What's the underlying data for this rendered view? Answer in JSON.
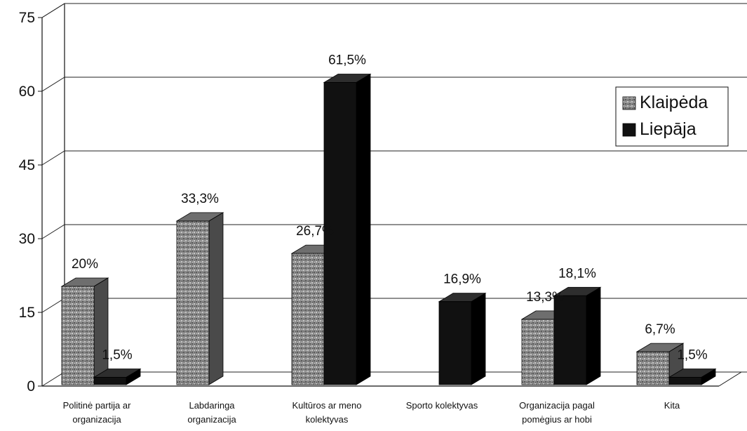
{
  "chart_data": {
    "type": "bar",
    "categories": [
      [
        "Politinė partija ar",
        "organizacija"
      ],
      [
        "Labdaringa",
        "organizacija"
      ],
      [
        "Kultūros ar meno",
        "kolektyvas"
      ],
      [
        "Sporto kolektyvas"
      ],
      [
        "Organizacija pagal",
        "pomėgius ar hobi"
      ],
      [
        "Kita"
      ]
    ],
    "series": [
      {
        "name": "Klaipėda",
        "color": "#8c8c8c",
        "values": [
          20,
          33.3,
          26.7,
          0,
          13.3,
          6.7
        ],
        "labels": [
          "20%",
          "33,3%",
          "26,7%",
          "",
          "13,3%",
          "6,7%"
        ]
      },
      {
        "name": "Liepāja",
        "color": "#111111",
        "values": [
          1.5,
          0,
          61.5,
          16.9,
          18.1,
          1.5
        ],
        "labels": [
          "1,5%",
          "",
          "61,5%",
          "16,9%",
          "18,1%",
          "1,5%"
        ]
      }
    ],
    "yticks": [
      "0",
      "15",
      "30",
      "45",
      "60",
      "75"
    ],
    "ylim": [
      0,
      75
    ],
    "grid": true,
    "legend_position": "top-right",
    "three_d": true
  }
}
